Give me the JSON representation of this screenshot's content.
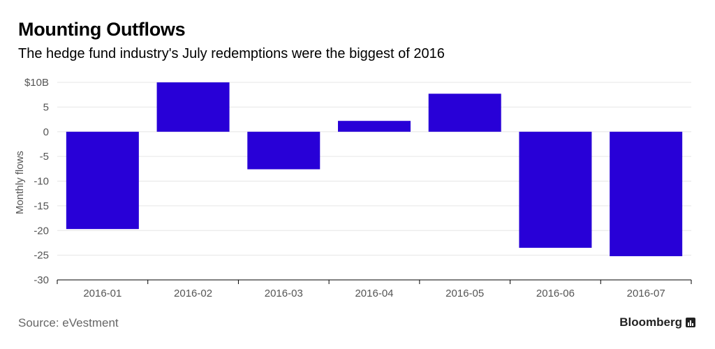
{
  "header": {
    "title": "Mounting Outflows",
    "subtitle": "The hedge fund industry's July redemptions were the biggest of 2016"
  },
  "footer": {
    "source": "Source: eVestment",
    "brand": "Bloomberg",
    "brand_icon": "bar-chart-icon"
  },
  "colors": {
    "bar": "#2800d7",
    "grid": "#e6e6e6",
    "axis": "#000000",
    "tick_text": "#555555"
  },
  "chart_data": {
    "type": "bar",
    "title": "Mounting Outflows",
    "subtitle": "The hedge fund industry's July redemptions were the biggest of 2016",
    "xlabel": "",
    "ylabel": "Monthly flows",
    "categories": [
      "2016-01",
      "2016-02",
      "2016-03",
      "2016-04",
      "2016-05",
      "2016-06",
      "2016-07"
    ],
    "values": [
      -19.7,
      10.0,
      -7.6,
      2.2,
      7.7,
      -23.5,
      -25.2
    ],
    "ylim": [
      -30,
      10
    ],
    "yticks": [
      10,
      5,
      0,
      -5,
      -10,
      -15,
      -20,
      -25,
      -30
    ],
    "ytick_labels": [
      "$10B",
      "5",
      "0",
      "-5",
      "-10",
      "-15",
      "-20",
      "-25",
      "-30"
    ],
    "grid": true,
    "legend": "none"
  }
}
